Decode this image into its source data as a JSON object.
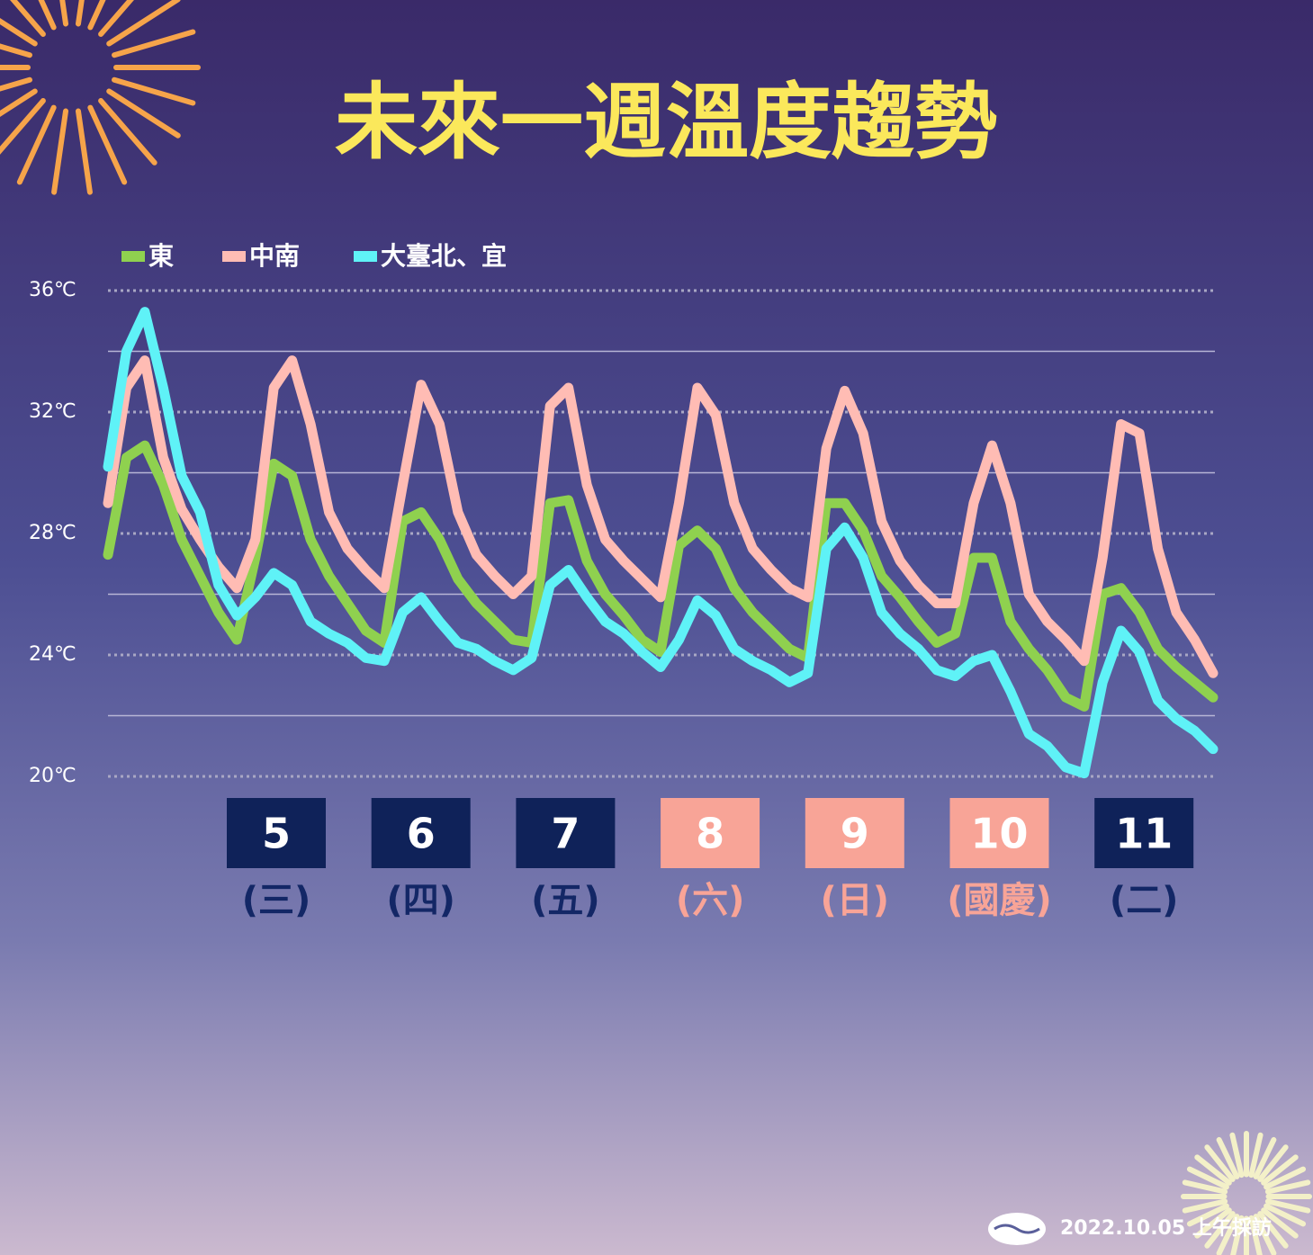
{
  "chart_data": {
    "type": "line",
    "title": "未來一週溫度趨勢",
    "categories": [
      null,
      null,
      null,
      null,
      null,
      null,
      null,
      null,
      null,
      null,
      null,
      null,
      null,
      null,
      null,
      null,
      null,
      null,
      null,
      null,
      null,
      null,
      null,
      null,
      null,
      null,
      null,
      null,
      null,
      null,
      null,
      null,
      null,
      null,
      null,
      null,
      null,
      null,
      null,
      null,
      null,
      null,
      null,
      null,
      null,
      null,
      null,
      null,
      null,
      null,
      null,
      null,
      null,
      null,
      null,
      null,
      null,
      null,
      null,
      null,
      null
    ],
    "series": [
      {
        "name": "東",
        "color": "#8fd14f",
        "values": [
          27.3,
          30.5,
          30.9,
          29.6,
          27.8,
          26.6,
          25.4,
          24.5,
          27.2,
          30.3,
          29.9,
          27.8,
          26.6,
          25.7,
          24.8,
          24.4,
          28.4,
          28.7,
          27.8,
          26.5,
          25.7,
          25.1,
          24.5,
          24.4,
          29.0,
          29.1,
          27.1,
          26.0,
          25.3,
          24.5,
          24.1,
          27.6,
          28.1,
          27.5,
          26.2,
          25.4,
          24.8,
          24.2,
          23.9,
          29.0,
          29.0,
          28.1,
          26.6,
          25.9,
          25.1,
          24.4,
          24.7,
          27.2,
          27.2,
          25.1,
          24.2,
          23.5,
          22.6,
          22.3,
          26.0,
          26.2,
          25.4,
          24.2,
          23.6,
          23.1,
          22.6
        ]
      },
      {
        "name": "中南",
        "color": "#ffbcb4",
        "values": [
          29.0,
          32.8,
          33.7,
          30.5,
          28.8,
          27.8,
          26.9,
          26.2,
          27.8,
          32.8,
          33.7,
          31.6,
          28.7,
          27.5,
          26.8,
          26.2,
          29.6,
          32.9,
          31.6,
          28.7,
          27.3,
          26.6,
          26.0,
          26.6,
          32.2,
          32.8,
          29.6,
          27.8,
          27.1,
          26.5,
          25.9,
          29.0,
          32.8,
          31.9,
          29.0,
          27.5,
          26.8,
          26.2,
          25.9,
          30.8,
          32.7,
          31.3,
          28.4,
          27.1,
          26.3,
          25.7,
          25.7,
          29.0,
          30.9,
          29.0,
          26.0,
          25.1,
          24.5,
          23.8,
          27.2,
          31.6,
          31.3,
          27.5,
          25.4,
          24.5,
          23.4
        ]
      },
      {
        "name": "大臺北、宜",
        "color": "#5ff2f7",
        "values": [
          30.2,
          34.0,
          35.3,
          32.8,
          29.9,
          28.7,
          26.3,
          25.3,
          25.9,
          26.7,
          26.3,
          25.1,
          24.7,
          24.4,
          23.9,
          23.8,
          25.4,
          25.9,
          25.1,
          24.4,
          24.2,
          23.8,
          23.5,
          23.9,
          26.3,
          26.8,
          25.9,
          25.1,
          24.7,
          24.1,
          23.6,
          24.5,
          25.8,
          25.3,
          24.2,
          23.8,
          23.5,
          23.1,
          23.4,
          27.5,
          28.2,
          27.2,
          25.4,
          24.7,
          24.2,
          23.5,
          23.3,
          23.8,
          24.0,
          22.8,
          21.4,
          21.0,
          20.3,
          20.1,
          23.1,
          24.8,
          24.1,
          22.5,
          21.9,
          21.5,
          20.9
        ]
      }
    ],
    "ylim": [
      20,
      36
    ],
    "yticks": [
      {
        "value": 20,
        "label": "20℃"
      },
      {
        "value": 24,
        "label": "24℃"
      },
      {
        "value": 28,
        "label": "28℃"
      },
      {
        "value": 32,
        "label": "32℃"
      },
      {
        "value": 36,
        "label": "36℃"
      }
    ],
    "minor_yticks": [
      22,
      26,
      30,
      34
    ],
    "grid": true,
    "legend": "top-left",
    "days": [
      {
        "date": "5",
        "weekday": "(三)",
        "holiday": false
      },
      {
        "date": "6",
        "weekday": "(四)",
        "holiday": false
      },
      {
        "date": "7",
        "weekday": "(五)",
        "holiday": false
      },
      {
        "date": "8",
        "weekday": "(六)",
        "holiday": true
      },
      {
        "date": "9",
        "weekday": "(日)",
        "holiday": true
      },
      {
        "date": "10",
        "weekday": "(國慶)",
        "holiday": true
      },
      {
        "date": "11",
        "weekday": "(二)",
        "holiday": false
      }
    ],
    "workday_color": "#0f2259",
    "holiday_color": "#f8a497",
    "footer": "2022.10.05 上午採訪"
  }
}
